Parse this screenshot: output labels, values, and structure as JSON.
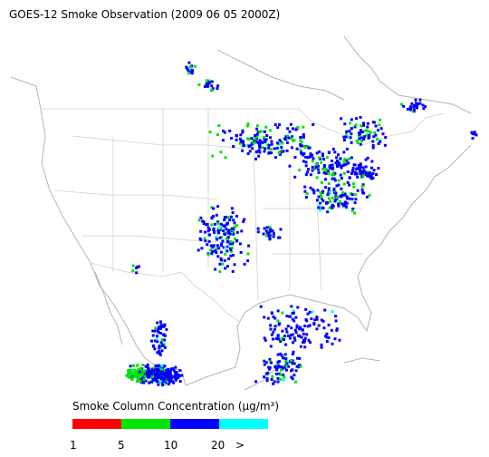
{
  "header": {
    "title": "GOES-12 Smoke Observation (2009 06 05  2000Z)"
  },
  "legend": {
    "title": "Smoke Column Concentration (µg/m³)",
    "colors": [
      "#ff0000",
      "#00e600",
      "#0000ff",
      "#00ffff"
    ],
    "labels": [
      "1",
      "5",
      "10",
      "20",
      ">"
    ]
  }
}
